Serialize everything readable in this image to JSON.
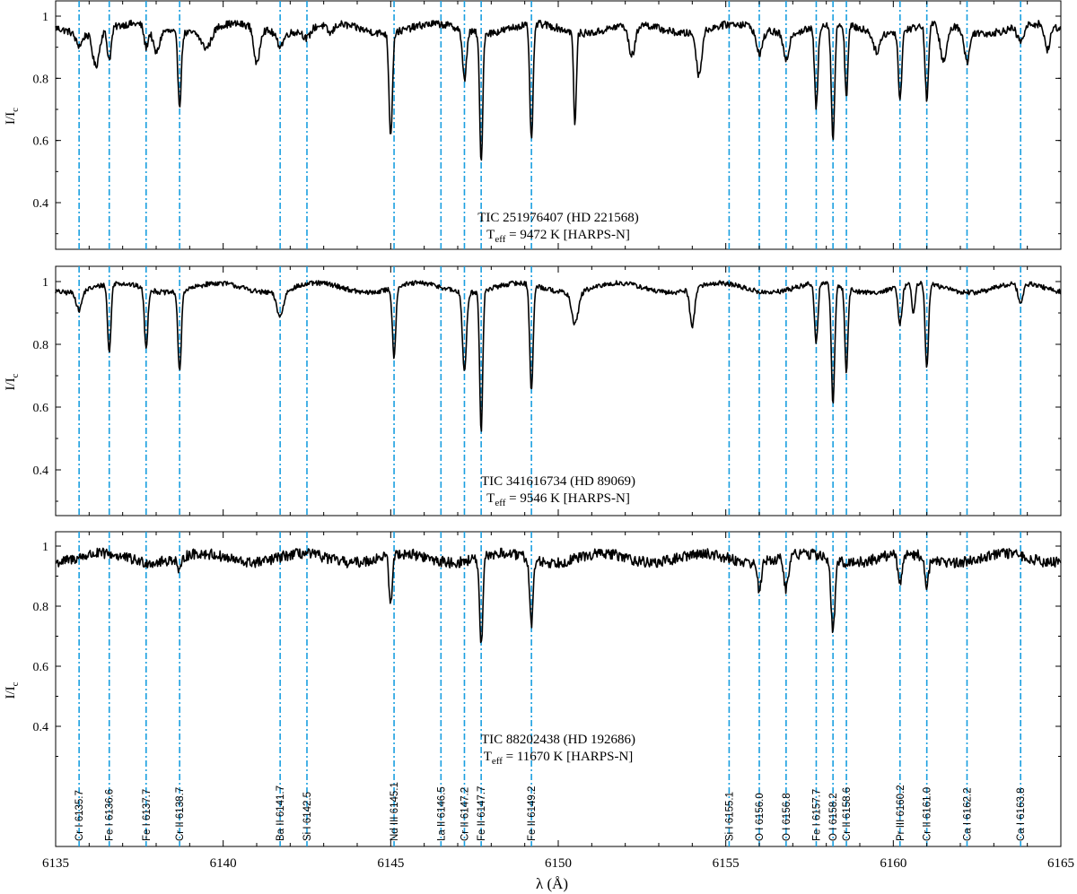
{
  "chart_data": {
    "type": "line",
    "xlabel": "λ (Å)",
    "ylabel": "I/I",
    "ylabel_sub": "c",
    "xlim": [
      6135,
      6165
    ],
    "ylim": [
      0.25,
      1.05
    ],
    "x_ticks": [
      6135,
      6140,
      6145,
      6150,
      6155,
      6160,
      6165
    ],
    "y_ticks": [
      0.4,
      0.6,
      0.8,
      1
    ],
    "y_tick_labels": [
      "0.4",
      "0.6",
      "0.8",
      "1"
    ],
    "teff_label": "T",
    "teff_sub": "eff",
    "grid": false,
    "line_color": "#000000",
    "marker_color": "#1a9fe0",
    "lines": [
      {
        "label": "Cr I 6135.7",
        "x": 6135.7
      },
      {
        "label": "Fe I 6136.6",
        "x": 6136.6
      },
      {
        "label": "Fe I 6137.7",
        "x": 6137.7
      },
      {
        "label": "Cr II 6138.7",
        "x": 6138.7
      },
      {
        "label": "Ba II 6141.7",
        "x": 6141.7
      },
      {
        "label": "Si I 6142.5",
        "x": 6142.5
      },
      {
        "label": "Nd III 6145.1",
        "x": 6145.1
      },
      {
        "label": "La II 6146.5",
        "x": 6146.5
      },
      {
        "label": "Cr II 6147.2",
        "x": 6147.2
      },
      {
        "label": "Fe II 6147.7",
        "x": 6147.7
      },
      {
        "label": "Fe II 6149.2",
        "x": 6149.2
      },
      {
        "label": "Si I 6155.1",
        "x": 6155.1
      },
      {
        "label": "O I 6156.0",
        "x": 6156.0
      },
      {
        "label": "O I 6156.8",
        "x": 6156.8
      },
      {
        "label": "Fe I 6157.7",
        "x": 6157.7
      },
      {
        "label": "O I 6158.2",
        "x": 6158.2
      },
      {
        "label": "Cr II 6158.6",
        "x": 6158.6
      },
      {
        "label": "Pr III 6160.2",
        "x": 6160.2
      },
      {
        "label": "Cr II 6161.0",
        "x": 6161.0
      },
      {
        "label": "Ca I 6162.2",
        "x": 6162.2
      },
      {
        "label": "Ca I 6163.8",
        "x": 6163.8
      }
    ],
    "panels": [
      {
        "name": "TIC 251976407 (HD 221568)",
        "teff_value": "= 9472 K [HARPS-N]",
        "continuum": 0.96,
        "noise": 0.012,
        "features": [
          [
            6135.7,
            0.04,
            0.1
          ],
          [
            6136.2,
            0.11,
            0.1
          ],
          [
            6136.6,
            0.1,
            0.06
          ],
          [
            6137.7,
            0.07,
            0.06
          ],
          [
            6138.0,
            0.08,
            0.1
          ],
          [
            6138.7,
            0.23,
            0.05
          ],
          [
            6139.5,
            0.06,
            0.15
          ],
          [
            6141.0,
            0.12,
            0.08
          ],
          [
            6141.7,
            0.04,
            0.1
          ],
          [
            6142.5,
            0.03,
            0.1
          ],
          [
            6143.2,
            0.03,
            0.1
          ],
          [
            6145.0,
            0.33,
            0.05
          ],
          [
            6147.2,
            0.16,
            0.06
          ],
          [
            6147.7,
            0.42,
            0.045
          ],
          [
            6149.2,
            0.37,
            0.05
          ],
          [
            6150.5,
            0.3,
            0.04
          ],
          [
            6152.2,
            0.1,
            0.1
          ],
          [
            6154.2,
            0.14,
            0.08
          ],
          [
            6156.0,
            0.08,
            0.1
          ],
          [
            6156.8,
            0.09,
            0.08
          ],
          [
            6157.7,
            0.26,
            0.05
          ],
          [
            6158.2,
            0.37,
            0.05
          ],
          [
            6158.6,
            0.23,
            0.045
          ],
          [
            6159.5,
            0.06,
            0.1
          ],
          [
            6160.2,
            0.22,
            0.05
          ],
          [
            6161.0,
            0.24,
            0.05
          ],
          [
            6161.5,
            0.12,
            0.1
          ],
          [
            6162.2,
            0.1,
            0.08
          ],
          [
            6163.8,
            0.05,
            0.1
          ],
          [
            6164.6,
            0.08,
            0.08
          ]
        ]
      },
      {
        "name": "TIC 341616734 (HD 89069)",
        "teff_value": "= 9546 K [HARPS-N]",
        "continuum": 0.98,
        "noise": 0.008,
        "features": [
          [
            6135.7,
            0.06,
            0.08
          ],
          [
            6136.6,
            0.22,
            0.05
          ],
          [
            6137.7,
            0.19,
            0.05
          ],
          [
            6138.7,
            0.26,
            0.05
          ],
          [
            6141.7,
            0.08,
            0.1
          ],
          [
            6145.1,
            0.22,
            0.05
          ],
          [
            6147.2,
            0.25,
            0.06
          ],
          [
            6147.7,
            0.45,
            0.045
          ],
          [
            6149.2,
            0.34,
            0.05
          ],
          [
            6150.5,
            0.1,
            0.1
          ],
          [
            6154.0,
            0.12,
            0.07
          ],
          [
            6157.7,
            0.19,
            0.05
          ],
          [
            6158.2,
            0.38,
            0.05
          ],
          [
            6158.6,
            0.27,
            0.045
          ],
          [
            6160.2,
            0.12,
            0.06
          ],
          [
            6160.6,
            0.09,
            0.05
          ],
          [
            6161.0,
            0.27,
            0.05
          ],
          [
            6163.8,
            0.06,
            0.08
          ]
        ]
      },
      {
        "name": "TIC 88202438 (HD 192686)",
        "teff_value": "= 11670 K [HARPS-N]",
        "continuum": 0.96,
        "noise": 0.018,
        "features": [
          [
            6138.7,
            0.05,
            0.06
          ],
          [
            6145.0,
            0.16,
            0.05
          ],
          [
            6147.7,
            0.3,
            0.05
          ],
          [
            6149.2,
            0.22,
            0.05
          ],
          [
            6156.0,
            0.09,
            0.06
          ],
          [
            6156.8,
            0.11,
            0.07
          ],
          [
            6158.2,
            0.24,
            0.06
          ],
          [
            6160.2,
            0.1,
            0.06
          ],
          [
            6161.0,
            0.09,
            0.06
          ]
        ]
      }
    ]
  }
}
